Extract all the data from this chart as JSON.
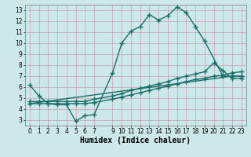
{
  "bg_color": "#cce8e8",
  "grid_color": "#c8a0b0",
  "line_color": "#1a6e6a",
  "marker": "+",
  "markersize": 4,
  "linewidth": 1.0,
  "xlabel": "Humidex (Indice chaleur)",
  "xlabel_fontsize": 7,
  "xlim": [
    -0.5,
    23.5
  ],
  "ylim": [
    2.5,
    13.5
  ],
  "xticks": [
    0,
    1,
    2,
    3,
    4,
    5,
    6,
    7,
    9,
    10,
    11,
    12,
    13,
    14,
    15,
    16,
    17,
    18,
    19,
    20,
    21,
    22,
    23
  ],
  "yticks": [
    3,
    4,
    5,
    6,
    7,
    8,
    9,
    10,
    11,
    12,
    13
  ],
  "tick_fontsize": 5.5,
  "series": [
    {
      "x": [
        0,
        1,
        2,
        3,
        4,
        5,
        6,
        7,
        9,
        10,
        11,
        12,
        13,
        14,
        15,
        16,
        17,
        18,
        19,
        21,
        22,
        23
      ],
      "y": [
        6.2,
        5.2,
        4.5,
        4.4,
        4.4,
        2.9,
        3.4,
        3.5,
        7.3,
        10.0,
        11.1,
        11.5,
        12.6,
        12.1,
        12.5,
        13.3,
        12.8,
        11.5,
        10.2,
        7.0,
        7.0,
        7.0
      ]
    },
    {
      "x": [
        0,
        1,
        2,
        3,
        4,
        5,
        6,
        7,
        9,
        10,
        11,
        12,
        13,
        14,
        15,
        16,
        17,
        18,
        19,
        20,
        21,
        22,
        23
      ],
      "y": [
        4.5,
        4.5,
        4.5,
        4.5,
        4.5,
        4.5,
        4.5,
        4.6,
        4.9,
        5.1,
        5.3,
        5.5,
        5.7,
        5.9,
        6.1,
        6.3,
        6.5,
        6.7,
        6.8,
        7.0,
        7.1,
        7.3,
        7.4
      ]
    },
    {
      "x": [
        0,
        1,
        2,
        3,
        4,
        5,
        6,
        7,
        9,
        10,
        11,
        12,
        13,
        14,
        15,
        16,
        17,
        18,
        19,
        20,
        21,
        22,
        23
      ],
      "y": [
        4.7,
        4.7,
        4.7,
        4.7,
        4.7,
        4.7,
        4.7,
        4.9,
        5.2,
        5.4,
        5.7,
        5.9,
        6.1,
        6.3,
        6.5,
        6.8,
        7.0,
        7.2,
        7.4,
        8.2,
        7.5,
        6.8,
        6.8
      ]
    },
    {
      "x": [
        0,
        22,
        23
      ],
      "y": [
        4.5,
        7.0,
        7.0
      ]
    }
  ]
}
